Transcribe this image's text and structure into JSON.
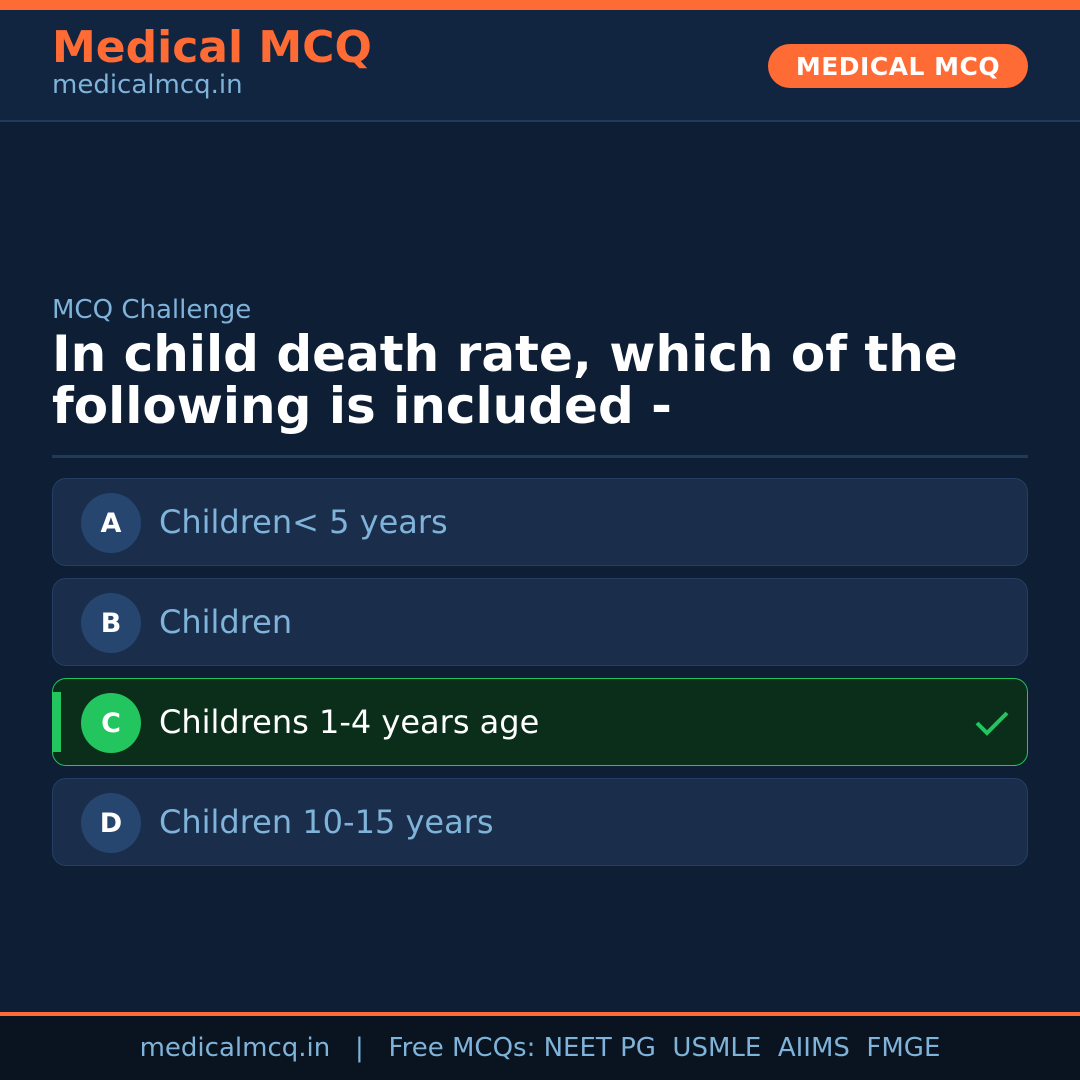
{
  "header": {
    "brand": "Medical MCQ",
    "site": "medicalmcq.in",
    "badge": "MEDICAL MCQ"
  },
  "kicker": "MCQ Challenge",
  "question": "In child death rate, which of the following is included -",
  "options": [
    {
      "letter": "A",
      "text": "Children< 5 years",
      "correct": false
    },
    {
      "letter": "B",
      "text": "Children",
      "correct": false
    },
    {
      "letter": "C",
      "text": "Childrens 1-4 years age",
      "correct": true
    },
    {
      "letter": "D",
      "text": "Children 10-15 years",
      "correct": false
    }
  ],
  "footer": {
    "text": "medicalmcq.in   |   Free MCQs: NEET PG  USMLE  AIIMS  FMGE"
  },
  "colors": {
    "accent": "#ff6b35",
    "correct": "#22c55e",
    "background": "#0e1f35"
  },
  "icons": {
    "correct": "checkmark-icon"
  }
}
